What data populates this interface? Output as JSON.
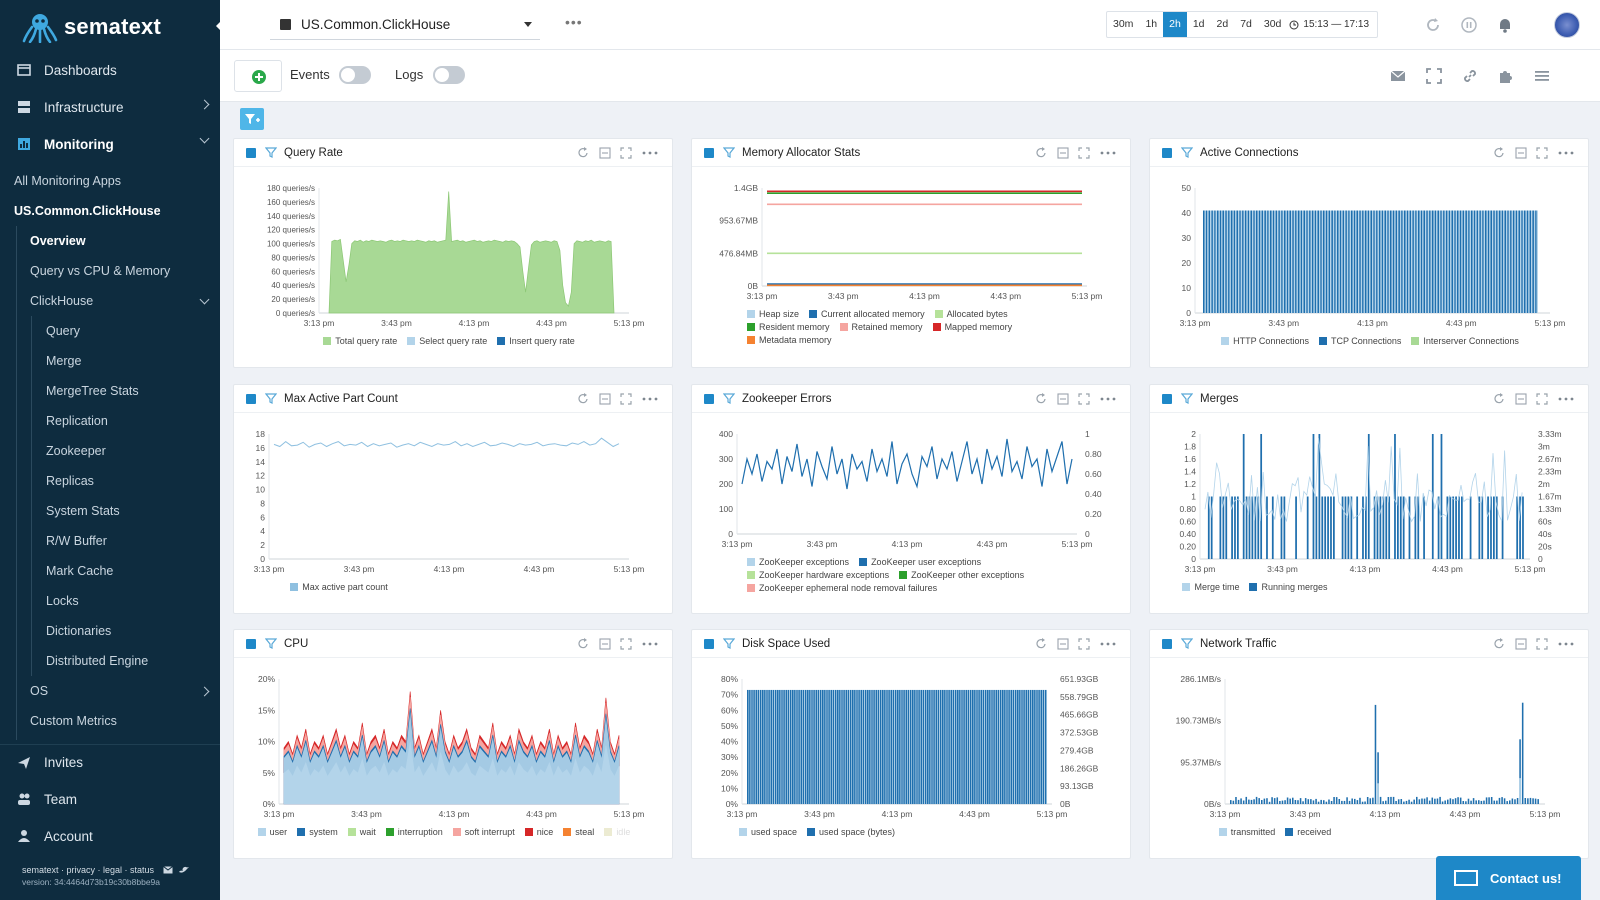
{
  "brand": {
    "name": "sematext",
    "accent": "#1e88c8",
    "sidebar_bg": "#0e2c3f"
  },
  "sidebar": {
    "top": [
      {
        "label": "Dashboards",
        "icon": "dashboard-icon"
      },
      {
        "label": "Infrastructure",
        "icon": "server-icon"
      },
      {
        "label": "Monitoring",
        "icon": "monitoring-icon"
      }
    ],
    "monitoring_items": [
      "All Monitoring Apps",
      "US.Common.ClickHouse",
      "Overview",
      "Query vs CPU & Memory",
      "ClickHouse"
    ],
    "clickhouse_items": [
      "Query",
      "Merge",
      "MergeTree Stats",
      "Replication",
      "Zookeeper",
      "Replicas",
      "System Stats",
      "R/W Buffer",
      "Mark Cache",
      "Locks",
      "Dictionaries",
      "Distributed Engine"
    ],
    "os_label": "OS",
    "custom_metrics": "Custom Metrics",
    "bottom": [
      {
        "label": "Invites",
        "icon": "send-icon"
      },
      {
        "label": "Team",
        "icon": "team-icon"
      },
      {
        "label": "Account",
        "icon": "user-icon"
      }
    ],
    "footer_links": "sematext · privacy · legal · status",
    "version": "version: 34:4464d73b19c30b8bbe9a"
  },
  "topbar": {
    "app_name": "US.Common.ClickHouse",
    "time_buttons": [
      "30m",
      "1h",
      "2h",
      "1d",
      "2d",
      "7d",
      "30d"
    ],
    "time_selected": "2h",
    "time_range": "15:13 — 17:13"
  },
  "toolbar": {
    "events_label": "Events",
    "logs_label": "Logs",
    "events_on": false,
    "logs_on": false
  },
  "contact_label": "Contact us!",
  "panels": [
    {
      "title": "Query Rate",
      "chart_data": {
        "type": "area",
        "x_ticks": [
          "3:13 pm",
          "3:43 pm",
          "4:13 pm",
          "4:43 pm",
          "5:13 pm"
        ],
        "y_ticks": [
          "0 queries/s",
          "20 queries/s",
          "40 queries/s",
          "60 queries/s",
          "80 queries/s",
          "100 queries/s",
          "120 queries/s",
          "140 queries/s",
          "160 queries/s",
          "180 queries/s"
        ],
        "ylim": [
          0,
          180
        ],
        "series": [
          {
            "name": "Total query rate",
            "color": "#a8d995"
          },
          {
            "name": "Select query rate",
            "color": "#b3d4ea"
          },
          {
            "name": "Insert query rate",
            "color": "#1f6fae"
          }
        ],
        "values": [
          0,
          103,
          105,
          104,
          106,
          75,
          45,
          70,
          100,
          104,
          103,
          105,
          102,
          104,
          103,
          105,
          104,
          103,
          104,
          103,
          102,
          104,
          105,
          103,
          104,
          103,
          105,
          104,
          103,
          104,
          103,
          105,
          104,
          103,
          102,
          104,
          103,
          104,
          102,
          103,
          104,
          105,
          175,
          103,
          104,
          105,
          103,
          104,
          102,
          103,
          104,
          105,
          103,
          104,
          102,
          103,
          104,
          103,
          105,
          104,
          103,
          102,
          104,
          103,
          104,
          103,
          100,
          95,
          60,
          30,
          65,
          98,
          103,
          104,
          102,
          103,
          104,
          103,
          102,
          104,
          103,
          90,
          40,
          15,
          10,
          30,
          100,
          104,
          103,
          102,
          104,
          103,
          105,
          102,
          103,
          104,
          103,
          102,
          104,
          103,
          0
        ]
      }
    },
    {
      "title": "Memory Allocator Stats",
      "chart_data": {
        "type": "line",
        "x_ticks": [
          "3:13 pm",
          "3:43 pm",
          "4:13 pm",
          "4:43 pm",
          "5:13 pm"
        ],
        "y_ticks": [
          "0B",
          "476.84MB",
          "953.67MB",
          "1.4GB"
        ],
        "ylim": [
          0,
          1.5
        ],
        "series": [
          {
            "name": "Heap size",
            "color": "#b3d4ea",
            "value": 0.02
          },
          {
            "name": "Current allocated memory",
            "color": "#1f6fae",
            "value": 0.03
          },
          {
            "name": "Allocated bytes",
            "color": "#b6e29a",
            "value": 0.5
          },
          {
            "name": "Resident memory",
            "color": "#2ca02c",
            "value": 1.42
          },
          {
            "name": "Retained memory",
            "color": "#f5a5a0",
            "value": 1.25
          },
          {
            "name": "Mapped memory",
            "color": "#d62728",
            "value": 1.45
          },
          {
            "name": "Metadata memory",
            "color": "#f58231",
            "value": 0.01
          }
        ]
      }
    },
    {
      "title": "Active Connections",
      "chart_data": {
        "type": "bar",
        "x_ticks": [
          "3:13 pm",
          "3:43 pm",
          "4:13 pm",
          "4:43 pm",
          "5:13 pm"
        ],
        "y_ticks": [
          "0",
          "10",
          "20",
          "30",
          "40",
          "50"
        ],
        "ylim": [
          0,
          50
        ],
        "series": [
          {
            "name": "HTTP Connections",
            "color": "#b3d4ea"
          },
          {
            "name": "TCP Connections",
            "color": "#1f6fae"
          },
          {
            "name": "Interserver Connections",
            "color": "#a8d995"
          }
        ],
        "value": 41
      }
    },
    {
      "title": "Max Active Part Count",
      "chart_data": {
        "type": "line",
        "x_ticks": [
          "3:13 pm",
          "3:43 pm",
          "4:13 pm",
          "4:43 pm",
          "5:13 pm"
        ],
        "y_ticks": [
          "0",
          "2",
          "4",
          "6",
          "8",
          "10",
          "12",
          "14",
          "16",
          "18"
        ],
        "ylim": [
          0,
          18
        ],
        "series": [
          {
            "name": "Max active part count",
            "color": "#8fc0e0"
          }
        ],
        "values": [
          16.5,
          16.2,
          16.9,
          16.3,
          16.4,
          16.8,
          16.1,
          16.5,
          16.7,
          16.2,
          16.6,
          16.9,
          16.3,
          16.5,
          16.4,
          16.8,
          16.2,
          16.6,
          16.3,
          16.5,
          16.7,
          16.1,
          16.4,
          16.6,
          16.3,
          16.8,
          16.5,
          16.2,
          16.6,
          16.4,
          16.5,
          16.9,
          16.3,
          16.6,
          16.2,
          16.5,
          16.8,
          16.3,
          16.4,
          16.7,
          16.5,
          16.2,
          16.6,
          16.4,
          16.5,
          16.8,
          16.3,
          16.5,
          16.6,
          16.4,
          16.3,
          16.7,
          16.5,
          16.9,
          16.4,
          16.6,
          17.4,
          16.8,
          16.2,
          16.6
        ]
      }
    },
    {
      "title": "Zookeeper Errors",
      "chart_data": {
        "type": "line",
        "x_ticks": [
          "3:13 pm",
          "3:43 pm",
          "4:13 pm",
          "4:43 pm",
          "5:13 pm"
        ],
        "y_ticks": [
          "0",
          "100",
          "200",
          "300",
          "400"
        ],
        "y2_ticks": [
          "0",
          "0.20",
          "0.40",
          "0.60",
          "0.80",
          "1"
        ],
        "ylim": [
          0,
          400
        ],
        "series": [
          {
            "name": "ZooKeeper exceptions",
            "color": "#b3d4ea"
          },
          {
            "name": "ZooKeeper user exceptions",
            "color": "#1f6fae"
          },
          {
            "name": "ZooKeeper hardware exceptions",
            "color": "#b6e29a"
          },
          {
            "name": "ZooKeeper other exceptions",
            "color": "#2ca02c"
          },
          {
            "name": "ZooKeeper ephemeral node removal failures",
            "color": "#f5a5a0"
          }
        ],
        "values": [
          200,
          300,
          240,
          320,
          210,
          290,
          260,
          340,
          200,
          310,
          250,
          360,
          230,
          300,
          190,
          330,
          270,
          220,
          350,
          240,
          300,
          180,
          320,
          260,
          290,
          210,
          340,
          250,
          300,
          230,
          370,
          200,
          280,
          320,
          240,
          190,
          310,
          270,
          350,
          220,
          300,
          260,
          330,
          210,
          290,
          370,
          240,
          300,
          200,
          340,
          260,
          310,
          230,
          380,
          250,
          290,
          220,
          350,
          270,
          300,
          190,
          340,
          250,
          310,
          370,
          200,
          300
        ]
      }
    },
    {
      "title": "Merges",
      "chart_data": {
        "type": "bar",
        "x_ticks": [
          "3:13 pm",
          "3:43 pm",
          "4:13 pm",
          "4:43 pm",
          "5:13 pm"
        ],
        "y_ticks": [
          "0",
          "0.20",
          "0.40",
          "0.60",
          "0.80",
          "1",
          "1.2",
          "1.4",
          "1.6",
          "1.8",
          "2"
        ],
        "y2_ticks": [
          "0",
          "20s",
          "40s",
          "60s",
          "1.33m",
          "1.67m",
          "2m",
          "2.33m",
          "2.67m",
          "3m",
          "3.33m"
        ],
        "ylim": [
          0,
          2
        ],
        "series": [
          {
            "name": "Merge time",
            "color": "#b3d4ea"
          },
          {
            "name": "Running merges",
            "color": "#1f6fae"
          }
        ]
      }
    },
    {
      "title": "CPU",
      "chart_data": {
        "type": "area",
        "x_ticks": [
          "3:13 pm",
          "3:43 pm",
          "4:13 pm",
          "4:43 pm",
          "5:13 pm"
        ],
        "y_ticks": [
          "0%",
          "5%",
          "10%",
          "15%",
          "20%"
        ],
        "ylim": [
          0,
          20
        ],
        "series": [
          {
            "name": "user",
            "color": "#b3d4ea"
          },
          {
            "name": "system",
            "color": "#1f6fae"
          },
          {
            "name": "wait",
            "color": "#b6e29a"
          },
          {
            "name": "interruption",
            "color": "#2ca02c"
          },
          {
            "name": "soft interrupt",
            "color": "#f5a5a0"
          },
          {
            "name": "nice",
            "color": "#d62728"
          },
          {
            "name": "steal",
            "color": "#f58231"
          },
          {
            "name": "idle",
            "color": "#ecebd2"
          }
        ],
        "values": [
          9,
          10,
          8,
          11,
          9,
          12,
          8,
          10,
          9,
          11,
          8,
          10,
          12,
          9,
          11,
          8,
          10,
          9,
          13,
          8,
          10,
          11,
          9,
          12,
          8,
          10,
          9,
          11,
          10,
          18,
          9,
          11,
          8,
          10,
          12,
          9,
          15,
          10,
          8,
          11,
          9,
          10,
          12,
          9,
          8,
          11,
          10,
          9,
          13,
          8,
          10,
          9,
          11,
          8,
          12,
          10,
          9,
          11,
          8,
          10,
          9,
          12,
          8,
          11,
          9,
          10,
          8,
          13,
          9,
          11,
          10,
          8,
          12,
          9,
          17,
          10,
          8,
          11
        ]
      }
    },
    {
      "title": "Disk Space Used",
      "chart_data": {
        "type": "bar",
        "x_ticks": [
          "3:13 pm",
          "3:43 pm",
          "4:13 pm",
          "4:43 pm",
          "5:13 pm"
        ],
        "y_ticks": [
          "0%",
          "10%",
          "20%",
          "30%",
          "40%",
          "50%",
          "60%",
          "70%",
          "80%"
        ],
        "y2_ticks": [
          "0B",
          "93.13GB",
          "186.26GB",
          "279.4GB",
          "372.53GB",
          "465.66GB",
          "558.79GB",
          "651.93GB"
        ],
        "ylim": [
          0,
          80
        ],
        "series": [
          {
            "name": "used space",
            "color": "#b3d4ea"
          },
          {
            "name": "used space (bytes)",
            "color": "#1f6fae"
          }
        ],
        "value": 73
      }
    },
    {
      "title": "Network Traffic",
      "chart_data": {
        "type": "bar",
        "x_ticks": [
          "3:13 pm",
          "3:43 pm",
          "4:13 pm",
          "4:43 pm",
          "5:13 pm"
        ],
        "y_ticks": [
          "0B/s",
          "95.37MB/s",
          "190.73MB/s",
          "286.1MB/s"
        ],
        "ylim": [
          0,
          290
        ],
        "series": [
          {
            "name": "transmitted",
            "color": "#b3d4ea"
          },
          {
            "name": "received",
            "color": "#1f6fae"
          }
        ]
      }
    }
  ]
}
